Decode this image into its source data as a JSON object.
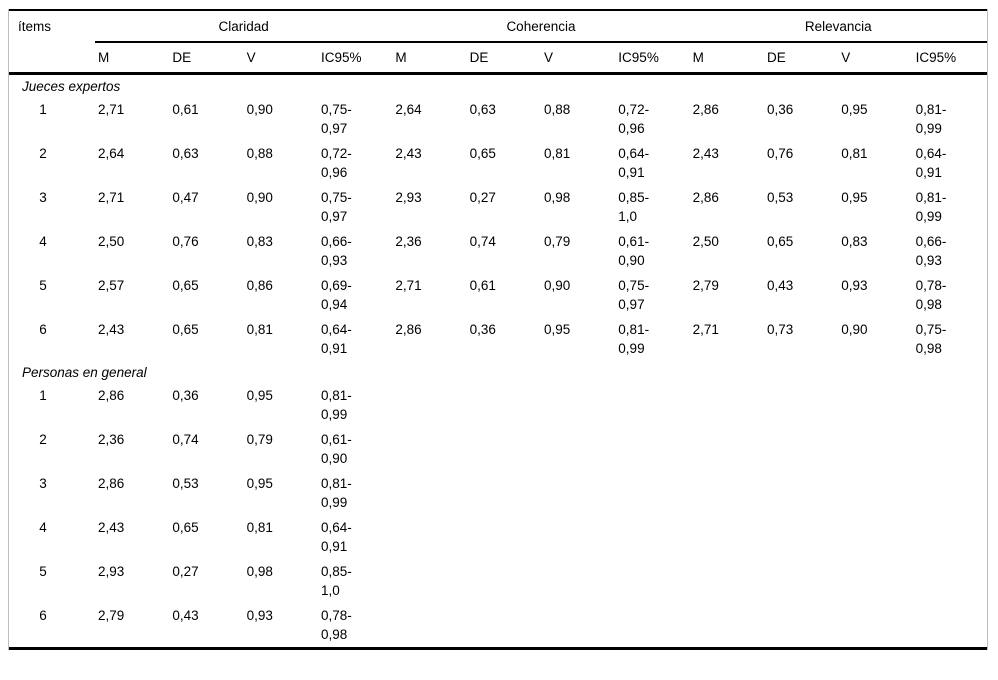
{
  "table": {
    "items_header": "ítems",
    "groups": [
      "Claridad",
      "Coherencia",
      "Relevancia"
    ],
    "subheaders": [
      "M",
      "DE",
      "V",
      "IC95%"
    ],
    "sections": [
      {
        "label": "Jueces expertos",
        "rows": [
          {
            "item": "1",
            "claridad": [
              "2,71",
              "0,61",
              "0,90",
              "0,75-\n0,97"
            ],
            "coherencia": [
              "2,64",
              "0,63",
              "0,88",
              "0,72-\n0,96"
            ],
            "relevancia": [
              "2,86",
              "0,36",
              "0,95",
              "0,81-\n0,99"
            ]
          },
          {
            "item": "2",
            "claridad": [
              "2,64",
              "0,63",
              "0,88",
              "0,72-\n0,96"
            ],
            "coherencia": [
              "2,43",
              "0,65",
              "0,81",
              "0,64-\n0,91"
            ],
            "relevancia": [
              "2,43",
              "0,76",
              "0,81",
              "0,64-\n0,91"
            ]
          },
          {
            "item": "3",
            "claridad": [
              "2,71",
              "0,47",
              "0,90",
              "0,75-\n0,97"
            ],
            "coherencia": [
              "2,93",
              "0,27",
              "0,98",
              "0,85-\n1,0"
            ],
            "relevancia": [
              "2,86",
              "0,53",
              "0,95",
              "0,81-\n0,99"
            ]
          },
          {
            "item": "4",
            "claridad": [
              "2,50",
              "0,76",
              "0,83",
              "0,66-\n0,93"
            ],
            "coherencia": [
              "2,36",
              "0,74",
              "0,79",
              "0,61-\n0,90"
            ],
            "relevancia": [
              "2,50",
              "0,65",
              "0,83",
              "0,66-\n0,93"
            ]
          },
          {
            "item": "5",
            "claridad": [
              "2,57",
              "0,65",
              "0,86",
              "0,69-\n0,94"
            ],
            "coherencia": [
              "2,71",
              "0,61",
              "0,90",
              "0,75-\n0,97"
            ],
            "relevancia": [
              "2,79",
              "0,43",
              "0,93",
              "0,78-\n0,98"
            ]
          },
          {
            "item": "6",
            "claridad": [
              "2,43",
              "0,65",
              "0,81",
              "0,64-\n0,91"
            ],
            "coherencia": [
              "2,86",
              "0,36",
              "0,95",
              "0,81-\n0,99"
            ],
            "relevancia": [
              "2,71",
              "0,73",
              "0,90",
              "0,75-\n0,98"
            ]
          }
        ]
      },
      {
        "label": "Personas en general",
        "rows": [
          {
            "item": "1",
            "claridad": [
              "2,86",
              "0,36",
              "0,95",
              "0,81-\n0,99"
            ]
          },
          {
            "item": "2",
            "claridad": [
              "2,36",
              "0,74",
              "0,79",
              "0,61-\n0,90"
            ]
          },
          {
            "item": "3",
            "claridad": [
              "2,86",
              "0,53",
              "0,95",
              "0,81-\n0,99"
            ]
          },
          {
            "item": "4",
            "claridad": [
              "2,43",
              "0,65",
              "0,81",
              "0,64-\n0,91"
            ]
          },
          {
            "item": "5",
            "claridad": [
              "2,93",
              "0,27",
              "0,98",
              "0,85-\n1,0"
            ]
          },
          {
            "item": "6",
            "claridad": [
              "2,79",
              "0,43",
              "0,93",
              "0,78-\n0,98"
            ]
          }
        ]
      }
    ]
  }
}
